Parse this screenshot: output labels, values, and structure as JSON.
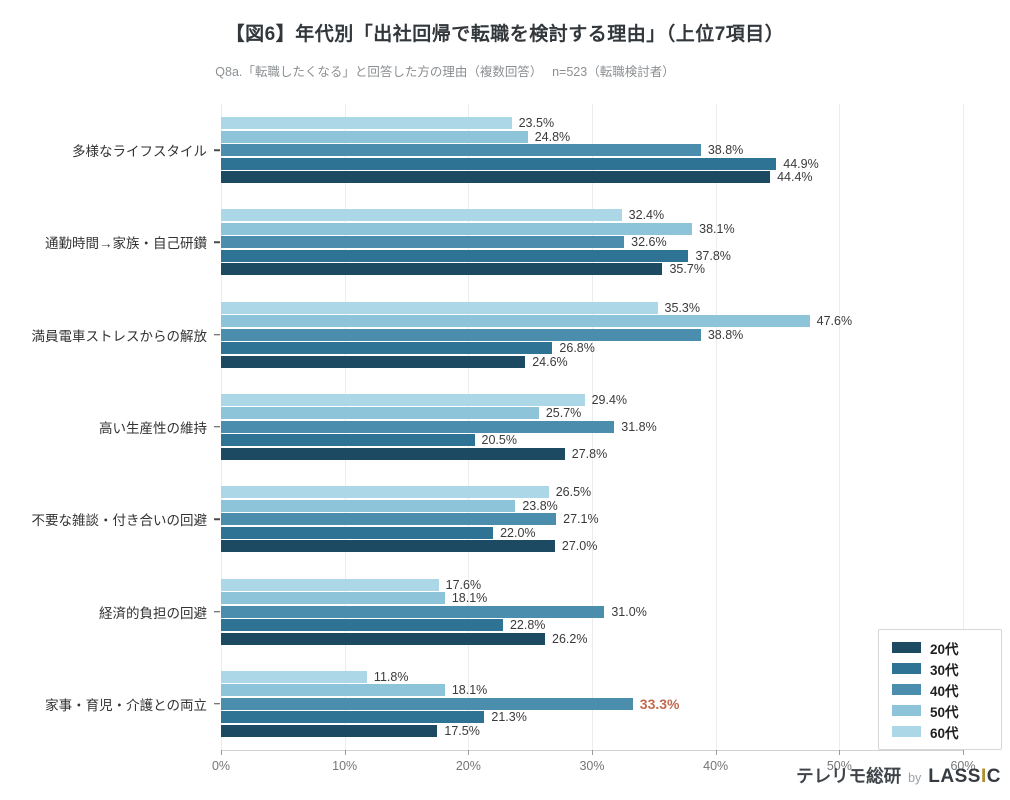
{
  "header": {
    "title": "【図6】年代別「出社回帰で転職を検討する理由」（上位7項目）",
    "subtitle": "Q8a.「転職したくなる」と回答した方の理由（複数回答）　 n=523（転職検討者）"
  },
  "footer": {
    "brand_name": "テレリモ総研",
    "by": "by",
    "lassic_parts": [
      "LASS",
      "I",
      "C"
    ],
    "lassic_accent_color": "#b08f2d"
  },
  "chart_data": {
    "type": "bar",
    "orientation": "horizontal",
    "title": "【図6】年代別「出社回帰で転職を検討する理由」（上位7項目）",
    "subtitle": "Q8a.「転職したくなる」と回答した方の理由（複数回答）　 n=523（転職検討者）",
    "xlim": [
      0,
      60
    ],
    "x_tick_labels": [
      "0%",
      "10%",
      "20%",
      "30%",
      "40%",
      "50%",
      "60%"
    ],
    "grid": true,
    "legend_position": "lower right",
    "value_label_format": "percent_one_decimal",
    "categories": [
      "多様なライフスタイル",
      "通勤時間→家族・自己研鑽",
      "満員電車ストレスからの解放",
      "高い生産性の維持",
      "不要な雑談・付き合いの回避",
      "経済的負担の回避",
      "家事・育児・介護との両立"
    ],
    "series": [
      {
        "name": "20代",
        "color": "#1d4a63",
        "values": [
          44.4,
          35.7,
          24.6,
          27.8,
          27.0,
          26.2,
          17.5
        ]
      },
      {
        "name": "30代",
        "color": "#2e7394",
        "values": [
          44.9,
          37.8,
          26.8,
          20.5,
          22.0,
          22.8,
          21.3
        ]
      },
      {
        "name": "40代",
        "color": "#4a8dac",
        "values": [
          38.8,
          32.6,
          38.8,
          31.8,
          27.1,
          31.0,
          33.3
        ]
      },
      {
        "name": "50代",
        "color": "#8ec4da",
        "values": [
          24.8,
          38.1,
          47.6,
          25.7,
          23.8,
          18.1,
          18.1
        ]
      },
      {
        "name": "60代",
        "color": "#abd7e6",
        "values": [
          23.5,
          32.4,
          35.3,
          29.4,
          26.5,
          17.6,
          11.8
        ]
      }
    ],
    "bar_display_order_top_to_bottom": [
      "60代",
      "50代",
      "40代",
      "30代",
      "20代"
    ],
    "highlight": {
      "category_index": 6,
      "series": "40代",
      "value": 33.3,
      "label_color": "#c4694e"
    },
    "colors": {
      "grid": "#ececec",
      "axis_line": "#d2d2d2",
      "tick_label": "#757575",
      "value_label": "#3a3a3a",
      "category_label": "#333333"
    }
  }
}
